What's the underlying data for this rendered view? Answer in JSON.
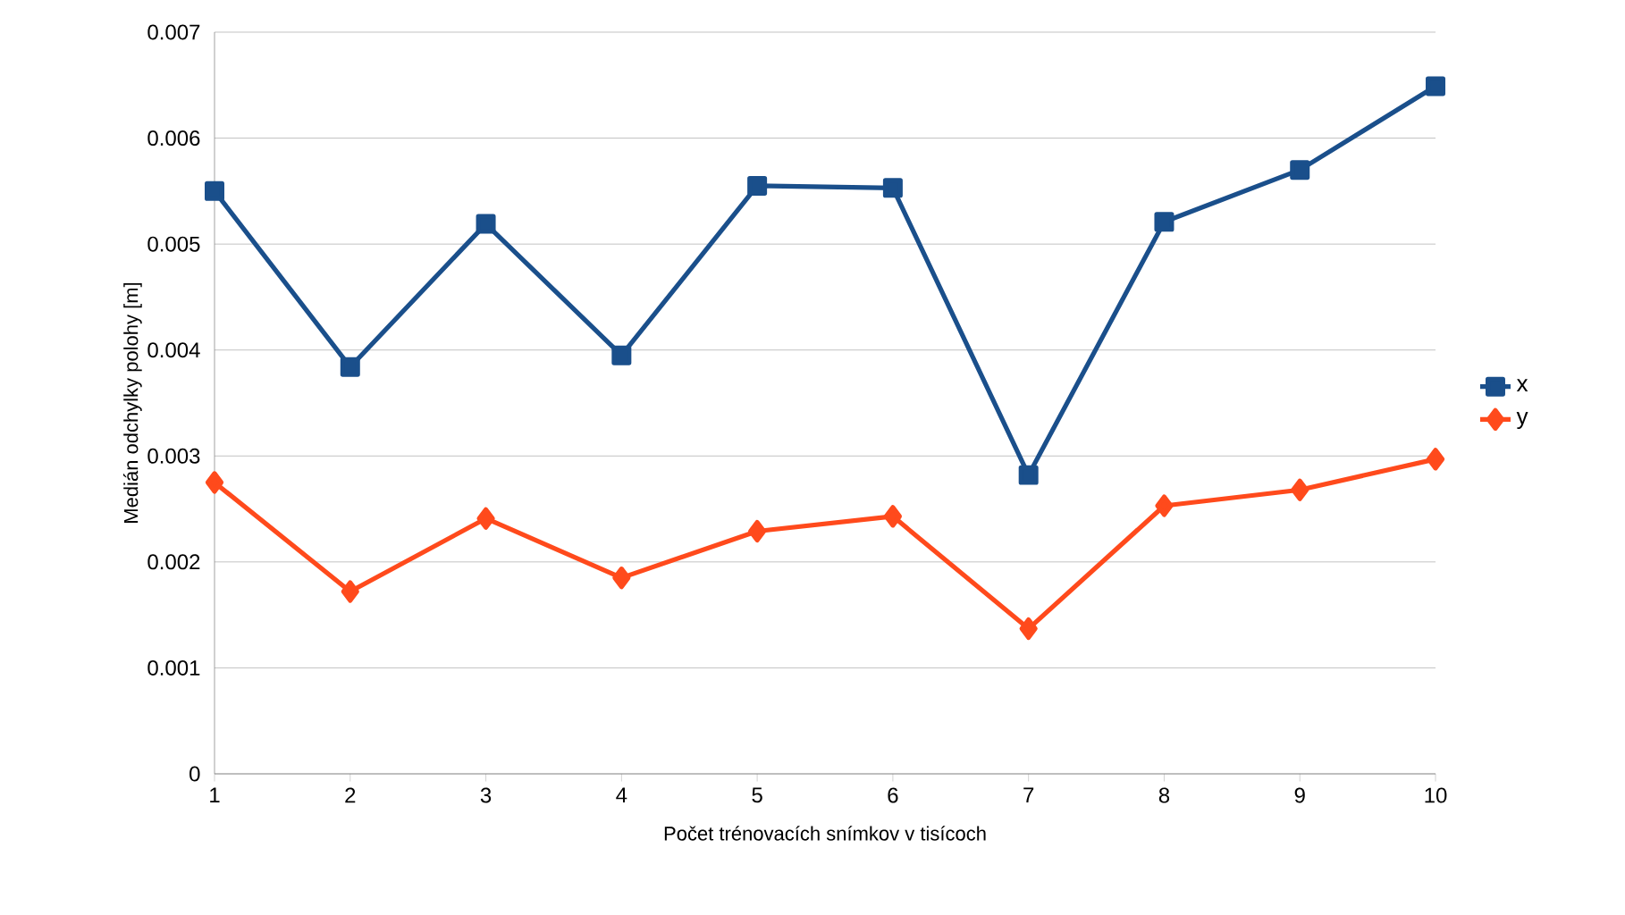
{
  "chart_data": {
    "type": "line",
    "xlabel": "Počet trénovacích snímkov v tisícoch",
    "ylabel": "Medián odchylky polohy [m]",
    "x": [
      1,
      2,
      3,
      4,
      5,
      6,
      7,
      8,
      9,
      10
    ],
    "series": [
      {
        "name": "x",
        "color": "#1a4f8b",
        "marker": "square",
        "values": [
          0.0055,
          0.00384,
          0.00519,
          0.00395,
          0.00555,
          0.00553,
          0.00282,
          0.00521,
          0.0057,
          0.00649
        ]
      },
      {
        "name": "y",
        "color": "#ff4a1c",
        "marker": "diamond",
        "values": [
          0.00275,
          0.00172,
          0.00241,
          0.00185,
          0.00229,
          0.00243,
          0.00137,
          0.00253,
          0.00268,
          0.00297
        ]
      }
    ],
    "xlim": [
      1,
      10
    ],
    "xticks": [
      1,
      2,
      3,
      4,
      5,
      6,
      7,
      8,
      9,
      10
    ],
    "ylim": [
      0,
      0.007
    ],
    "yticks": [
      0,
      0.001,
      0.002,
      0.003,
      0.004,
      0.005,
      0.006,
      0.007
    ],
    "grid": "y",
    "legend": "right",
    "line_style": "solid"
  }
}
